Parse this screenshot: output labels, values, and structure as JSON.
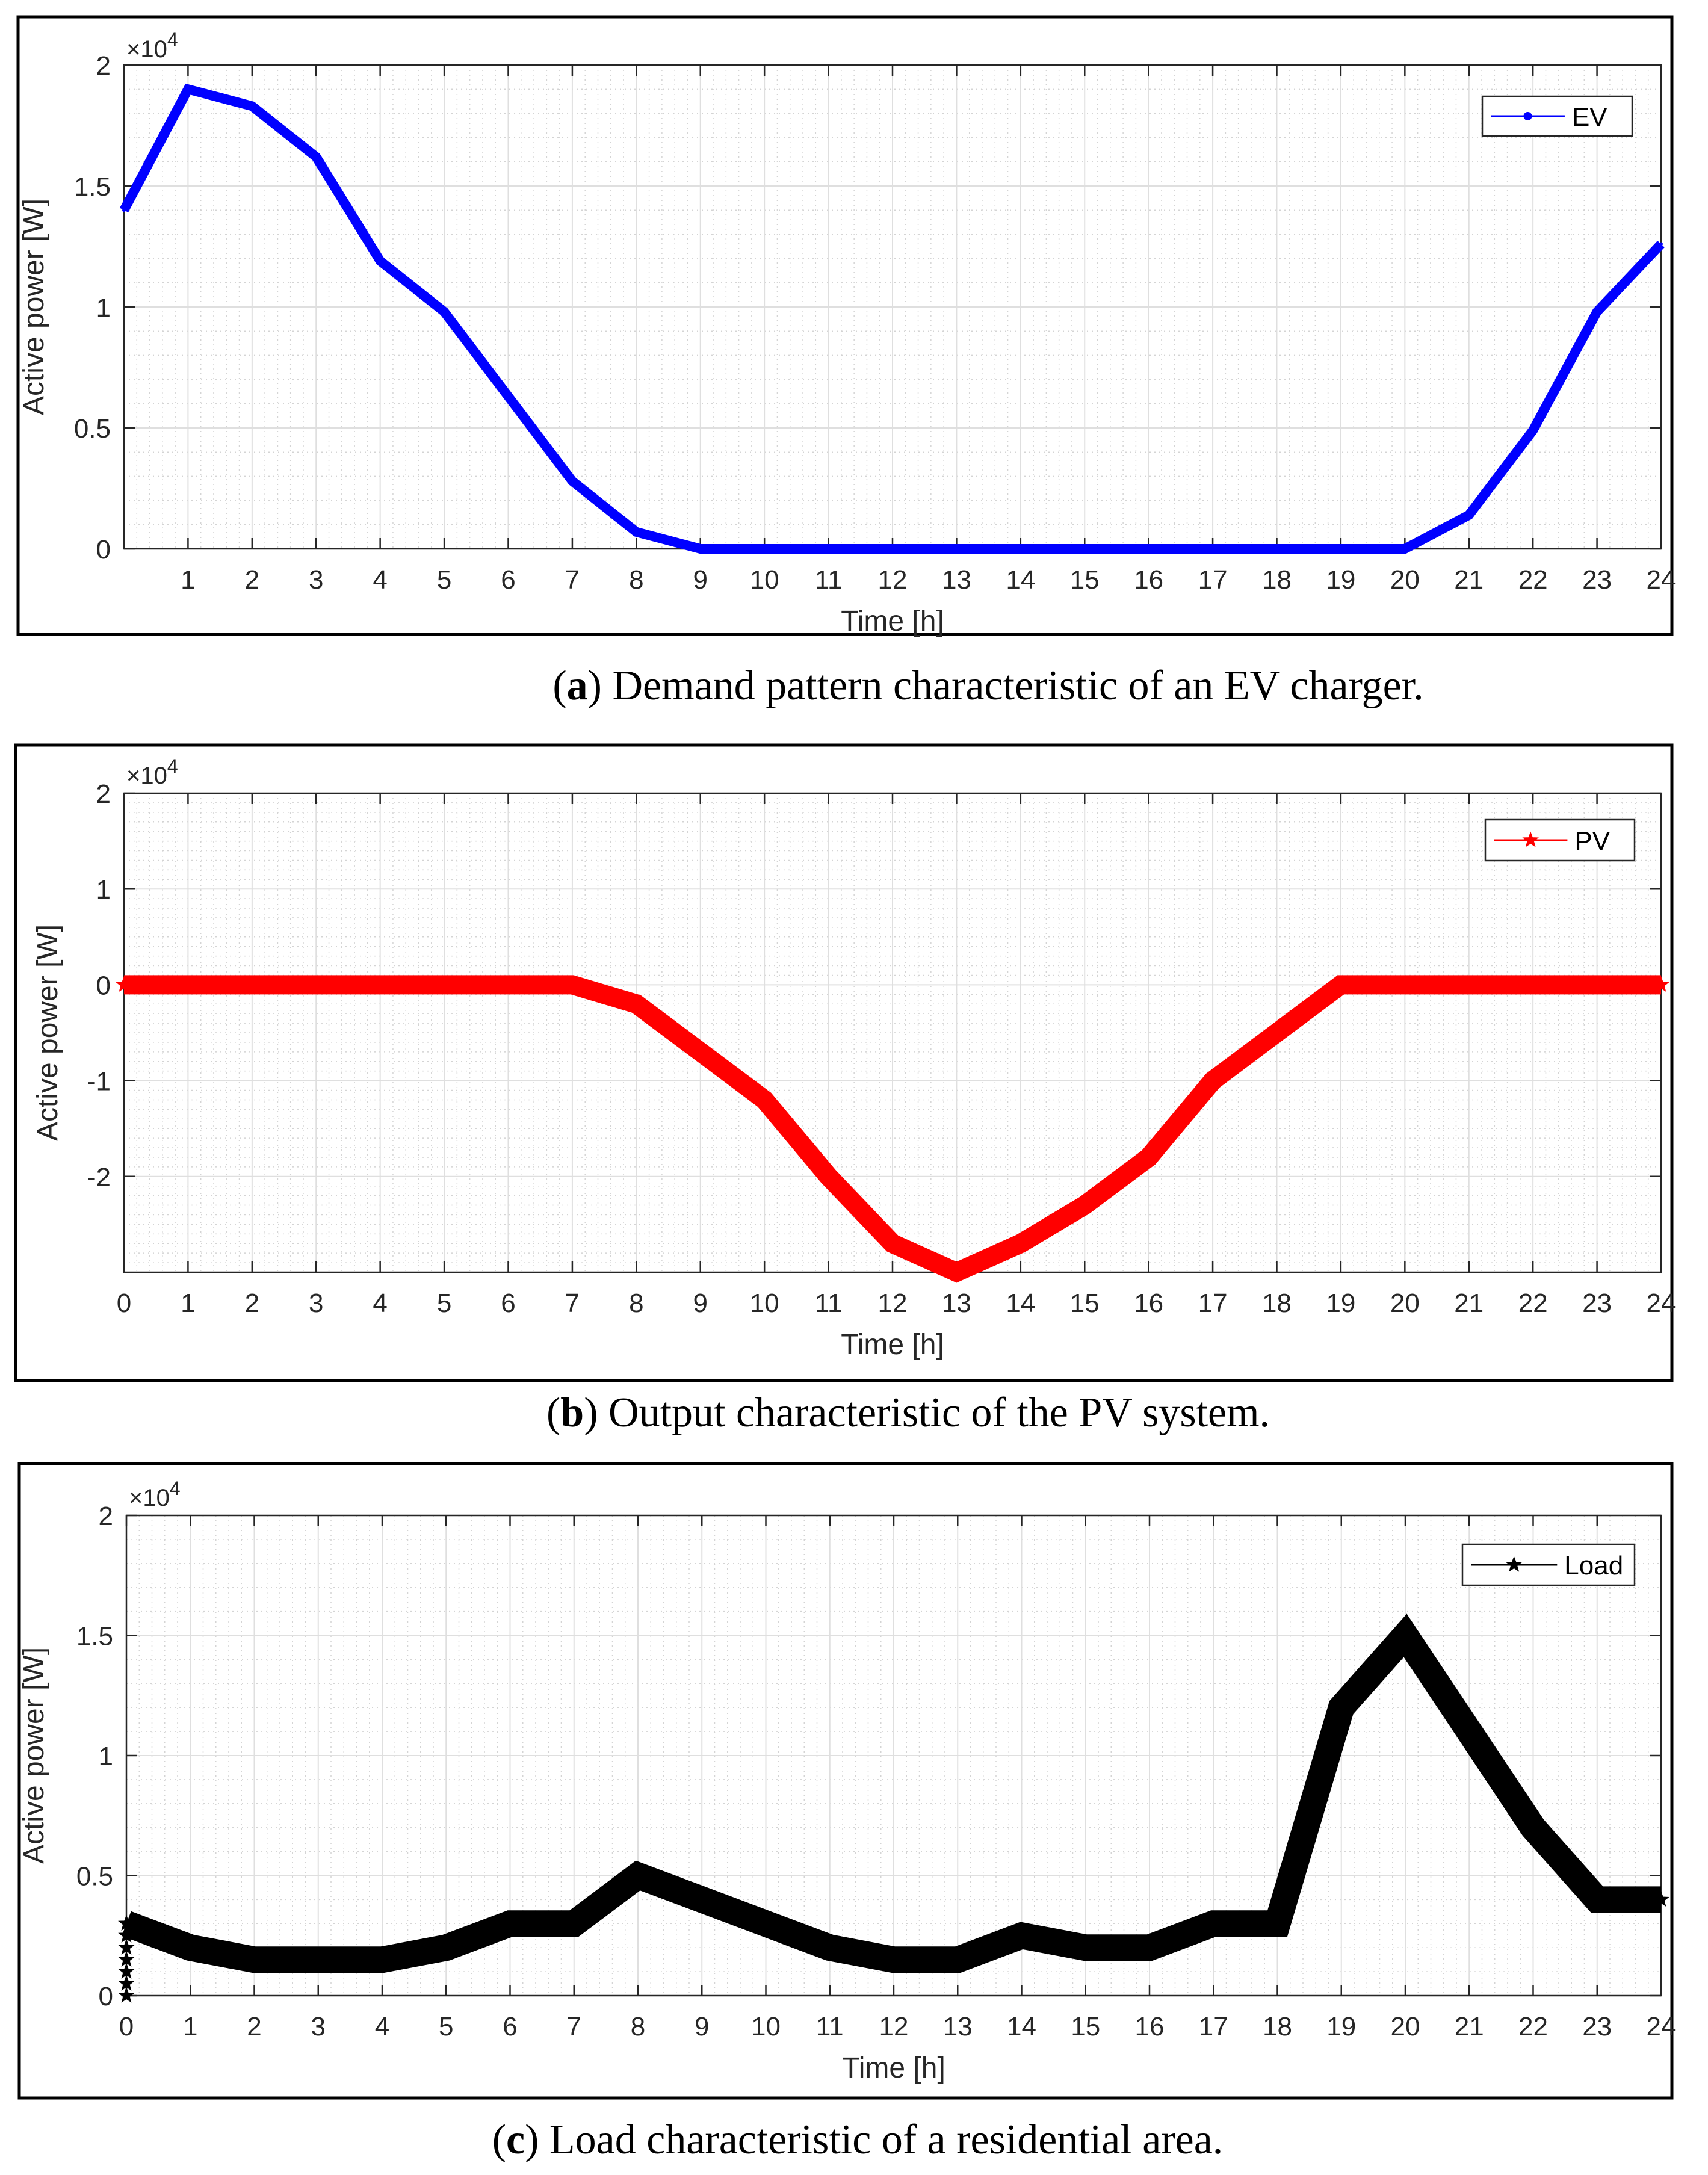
{
  "chart_data": [
    {
      "type": "line",
      "panel": "a",
      "x": [
        0,
        1,
        2,
        3,
        4,
        5,
        6,
        7,
        8,
        9,
        10,
        11,
        12,
        13,
        14,
        15,
        16,
        17,
        18,
        19,
        20,
        21,
        22,
        23,
        24
      ],
      "series": [
        {
          "name": "EV",
          "color": "#0000ff",
          "values": [
            14000,
            19000,
            18300,
            16200,
            11900,
            9800,
            6300,
            2800,
            700,
            0,
            0,
            0,
            0,
            0,
            0,
            0,
            0,
            0,
            0,
            0,
            0,
            1400,
            4900,
            9800,
            12600
          ]
        }
      ],
      "xlabel": "Time [h]",
      "ylabel": "Active power [W]",
      "ylim": [
        0,
        20000
      ],
      "yticks": [
        0,
        5000,
        10000,
        15000,
        20000
      ],
      "ytick_labels": [
        "0",
        "0.5",
        "1",
        "1.5",
        "2"
      ],
      "xticks": [
        1,
        2,
        3,
        4,
        5,
        6,
        7,
        8,
        9,
        10,
        11,
        12,
        13,
        14,
        15,
        16,
        17,
        18,
        19,
        20,
        21,
        22,
        23,
        24
      ],
      "exponent_base": "×10",
      "exponent_power": "4",
      "legend": "top-right",
      "grid": true,
      "caption_letter": "a",
      "caption_text": "Demand pattern characteristic of an EV charger."
    },
    {
      "type": "line",
      "panel": "b",
      "x": [
        0,
        1,
        2,
        3,
        4,
        5,
        6,
        7,
        8,
        9,
        10,
        11,
        12,
        13,
        14,
        15,
        16,
        17,
        18,
        19,
        20,
        21,
        22,
        23,
        24
      ],
      "series": [
        {
          "name": "PV",
          "color": "#ff0000",
          "values": [
            0,
            0,
            0,
            0,
            0,
            0,
            0,
            0,
            -2000,
            -7000,
            -12000,
            -20000,
            -27000,
            -30000,
            -27000,
            -23000,
            -18000,
            -10000,
            -5000,
            0,
            0,
            0,
            0,
            0,
            0
          ]
        }
      ],
      "xlabel": "Time [h]",
      "ylabel": "Active power [W]",
      "ylim": [
        -30000,
        20000
      ],
      "yticks": [
        -20000,
        -10000,
        0,
        10000,
        20000
      ],
      "ytick_labels": [
        "-2",
        "-1",
        "0",
        "1",
        "2"
      ],
      "xticks": [
        0,
        1,
        2,
        3,
        4,
        5,
        6,
        7,
        8,
        9,
        10,
        11,
        12,
        13,
        14,
        15,
        16,
        17,
        18,
        19,
        20,
        21,
        22,
        23,
        24
      ],
      "exponent_base": "×10",
      "exponent_power": "4",
      "legend": "top-right",
      "grid": true,
      "caption_letter": "b",
      "caption_text": "Output characteristic of the PV system."
    },
    {
      "type": "line",
      "panel": "c",
      "x": [
        0,
        1,
        2,
        3,
        4,
        5,
        6,
        7,
        8,
        9,
        10,
        11,
        12,
        13,
        14,
        15,
        16,
        17,
        18,
        19,
        20,
        21,
        22,
        23,
        24
      ],
      "series": [
        {
          "name": "Load",
          "color": "#000000",
          "values": [
            3000,
            2000,
            1500,
            1500,
            1500,
            2000,
            3000,
            3000,
            5000,
            4000,
            3000,
            2000,
            1500,
            1500,
            2500,
            2000,
            2000,
            3000,
            3000,
            12000,
            15000,
            11000,
            7000,
            4000,
            4000
          ]
        }
      ],
      "xlabel": "Time [h]",
      "ylabel": "Active power [W]",
      "ylim": [
        0,
        20000
      ],
      "yticks": [
        0,
        5000,
        10000,
        15000,
        20000
      ],
      "ytick_labels": [
        "0",
        "0.5",
        "1",
        "1.5",
        "2"
      ],
      "xticks": [
        0,
        1,
        2,
        3,
        4,
        5,
        6,
        7,
        8,
        9,
        10,
        11,
        12,
        13,
        14,
        15,
        16,
        17,
        18,
        19,
        20,
        21,
        22,
        23,
        24
      ],
      "exponent_base": "×10",
      "exponent_power": "4",
      "legend": "top-right",
      "grid": true,
      "caption_letter": "c",
      "caption_text": "Load characteristic of a residential area."
    }
  ]
}
